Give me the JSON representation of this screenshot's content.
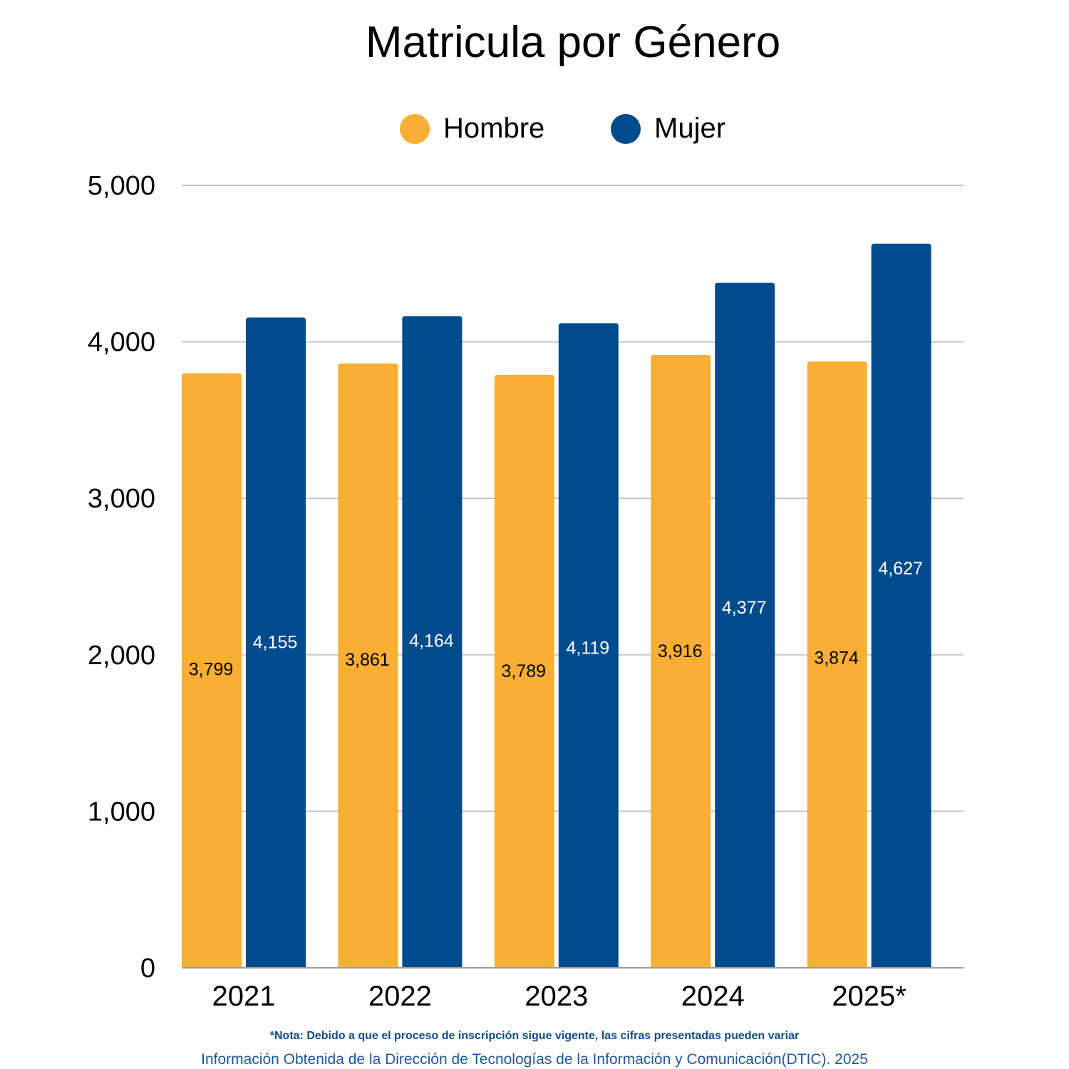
{
  "colors": {
    "hombre": "#FBAE34",
    "mujer": "#004B8C",
    "grid": "#C6C6C6",
    "axis": "#9E9E9E",
    "note": "#0F4C81",
    "source": "#1F5797"
  },
  "chart_data": {
    "type": "bar",
    "title": "Matricula por Género",
    "categories": [
      "2021",
      "2022",
      "2023",
      "2024",
      "2025*"
    ],
    "series": [
      {
        "name": "Hombre",
        "values": [
          3799,
          3861,
          3789,
          3916,
          3874
        ],
        "labels": [
          "3,799",
          "3,861",
          "3,789",
          "3,916",
          "3,874"
        ]
      },
      {
        "name": "Mujer",
        "values": [
          4155,
          4164,
          4119,
          4377,
          4627
        ],
        "labels": [
          "4,155",
          "4,164",
          "4,119",
          "4,377",
          "4,627"
        ]
      }
    ],
    "ylim": [
      0,
      5000
    ],
    "yticks": [
      0,
      1000,
      2000,
      3000,
      4000,
      5000
    ],
    "ytick_labels": [
      "0",
      "1,000",
      "2,000",
      "3,000",
      "4,000",
      "5,000"
    ],
    "grid": true,
    "legend": "top-center"
  },
  "footer": {
    "note": "*Nota: Debido a que el proceso de inscripción sigue vigente, las cifras presentadas pueden variar",
    "source": "Información Obtenida de la Dirección de Tecnologías de la Información y Comunicación(DTIC). 2025"
  }
}
